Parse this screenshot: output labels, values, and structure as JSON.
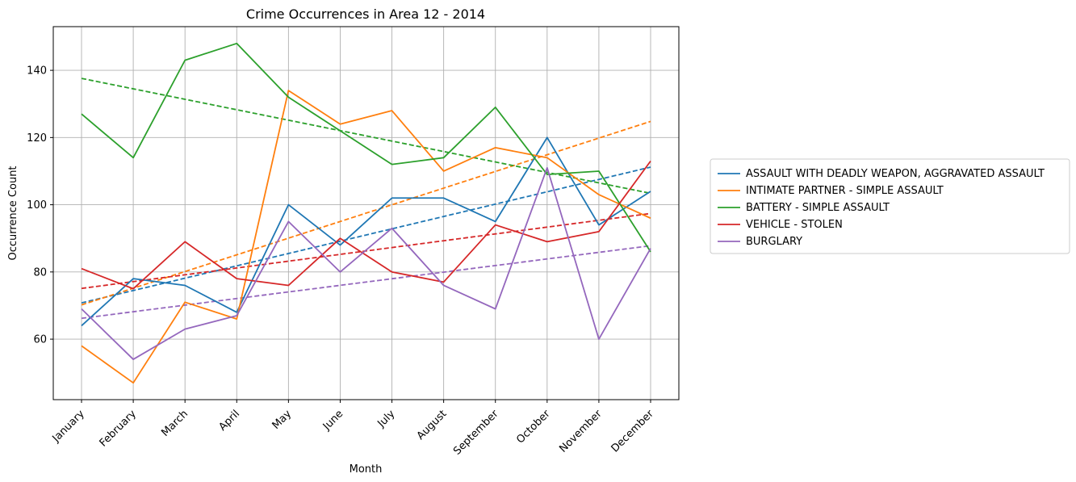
{
  "chart_data": {
    "type": "line",
    "title": "Crime Occurrences in Area 12 - 2014",
    "xlabel": "Month",
    "ylabel": "Occurrence Count",
    "categories": [
      "January",
      "February",
      "March",
      "April",
      "May",
      "June",
      "July",
      "August",
      "September",
      "October",
      "November",
      "December"
    ],
    "ylim": [
      42,
      153
    ],
    "yticks": [
      60,
      80,
      100,
      120,
      140
    ],
    "grid": true,
    "legend_position": "right",
    "series": [
      {
        "name": "ASSAULT WITH DEADLY WEAPON, AGGRAVATED ASSAULT",
        "color": "#1f77b4",
        "values": [
          64,
          78,
          76,
          68,
          100,
          88,
          102,
          102,
          95,
          120,
          94,
          104
        ],
        "trend": [
          70.8,
          111.2
        ]
      },
      {
        "name": "INTIMATE PARTNER - SIMPLE ASSAULT",
        "color": "#ff7f0e",
        "values": [
          58,
          47,
          71,
          66,
          134,
          124,
          128,
          110,
          117,
          114,
          103,
          96
        ],
        "trend": [
          70.2,
          124.8
        ]
      },
      {
        "name": "BATTERY - SIMPLE ASSAULT",
        "color": "#2ca02c",
        "values": [
          127,
          114,
          143,
          148,
          132,
          122,
          112,
          114,
          129,
          109,
          110,
          86
        ],
        "trend": [
          137.6,
          103.4
        ]
      },
      {
        "name": "VEHICLE - STOLEN",
        "color": "#d62728",
        "values": [
          81,
          75,
          89,
          78,
          76,
          90,
          80,
          77,
          94,
          89,
          92,
          113
        ],
        "trend": [
          75.1,
          97.4
        ]
      },
      {
        "name": "BURGLARY",
        "color": "#9467bd",
        "values": [
          69,
          54,
          63,
          67,
          95,
          80,
          93,
          76,
          69,
          111,
          60,
          87
        ],
        "trend": [
          66.2,
          87.8
        ]
      }
    ]
  }
}
